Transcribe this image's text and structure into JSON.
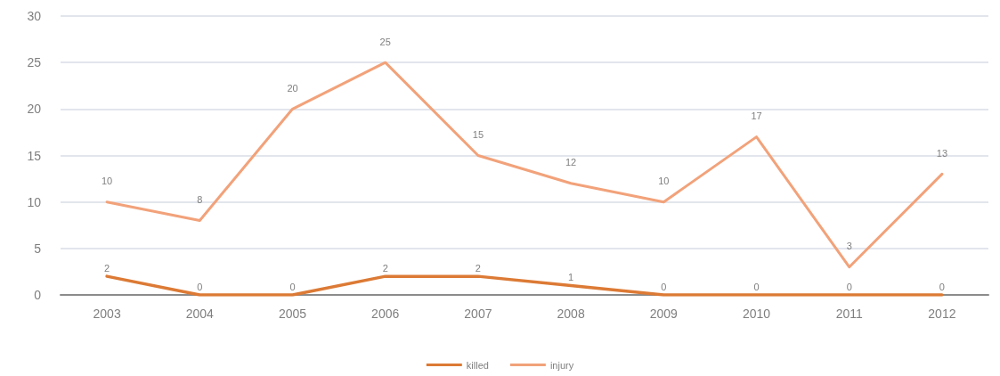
{
  "chart_data": {
    "type": "line",
    "categories": [
      "2003",
      "2004",
      "2005",
      "2006",
      "2007",
      "2008",
      "2009",
      "2010",
      "2011",
      "2012"
    ],
    "series": [
      {
        "name": "killed",
        "color": "#dc7a35",
        "values": [
          2,
          0,
          0,
          2,
          2,
          1,
          0,
          0,
          0,
          0
        ]
      },
      {
        "name": "injury",
        "color": "#f2a27a",
        "values": [
          10,
          8,
          20,
          25,
          15,
          12,
          10,
          17,
          3,
          13
        ]
      }
    ],
    "ylim": [
      0,
      30
    ],
    "yticks": [
      0,
      5,
      10,
      15,
      20,
      25,
      30
    ],
    "grid": "y",
    "legend": "bottom",
    "data_labels": true,
    "marker": "none",
    "line_style": "solid"
  }
}
